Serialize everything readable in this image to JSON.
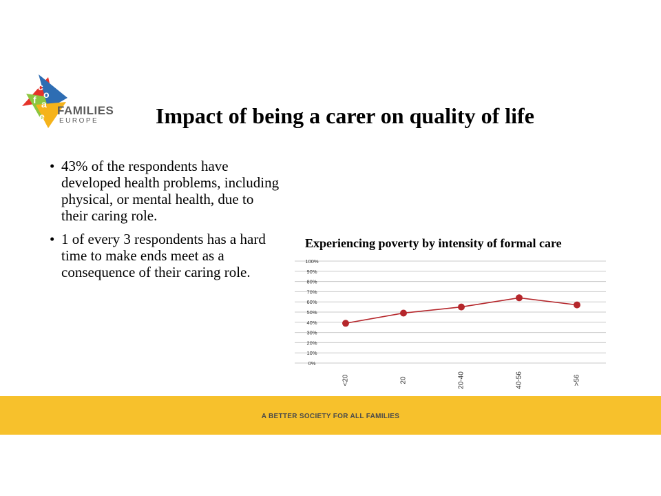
{
  "logo": {
    "letters": [
      "c",
      "o",
      "f",
      "a",
      "c",
      "e"
    ],
    "word1": "FAMILIES",
    "word2": "EUROPE",
    "colors": [
      "#e5332a",
      "#2e6db3",
      "#f5b31b",
      "#8cc63f"
    ]
  },
  "slide": {
    "title": "Impact of being a carer on quality of life",
    "bullets": [
      "43% of the respondents have developed health problems, including physical, or mental health, due to their caring role.",
      "1 of every 3 respondents has a hard time to make ends meet as a consequence of their caring role."
    ],
    "bullet_glyph": "•"
  },
  "chart_data": {
    "type": "line",
    "title": "Experiencing poverty by intensity of formal care",
    "categories": [
      "<20",
      "20",
      "20-40",
      "40-56",
      ">56"
    ],
    "series": [
      {
        "values": [
          39,
          49,
          55,
          64,
          57
        ]
      }
    ],
    "yticks": [
      "0%",
      "10%",
      "20%",
      "30%",
      "40%",
      "50%",
      "60%",
      "70%",
      "80%",
      "90%",
      "100%"
    ],
    "ylim": [
      0,
      100
    ],
    "grid": true,
    "line_color": "#b5262b"
  },
  "footer": {
    "tagline": "A BETTER SOCIETY FOR ALL FAMILIES",
    "color": "#f7c12c"
  }
}
